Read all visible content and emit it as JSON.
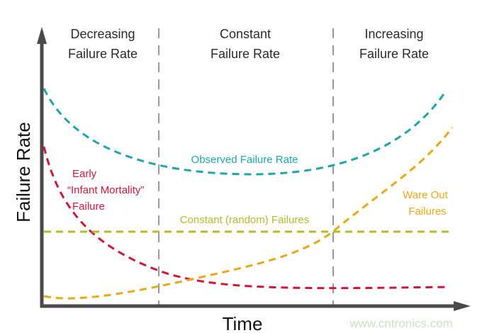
{
  "phases": [
    {
      "line1": "Decreasing",
      "line2": "Failure Rate"
    },
    {
      "line1": "Constant",
      "line2": "Failure Rate"
    },
    {
      "line1": "Increasing",
      "line2": "Failure Rate"
    }
  ],
  "axes": {
    "x_label": "Time",
    "y_label": "Failure Rate"
  },
  "curves": {
    "observed": {
      "label": "Observed Failure Rate",
      "color": "#1ea5a5"
    },
    "early": {
      "line1": "Early",
      "line2": "“Infant Mortality”",
      "line3": "Failure",
      "color": "#d0173a"
    },
    "constant": {
      "label": "Constant (random) Failures",
      "color": "#b3bb2a"
    },
    "wearout": {
      "line1": "Ware Out",
      "line2": "Failures",
      "color": "#e8a914"
    }
  },
  "watermark": "www.cntronics.com"
}
